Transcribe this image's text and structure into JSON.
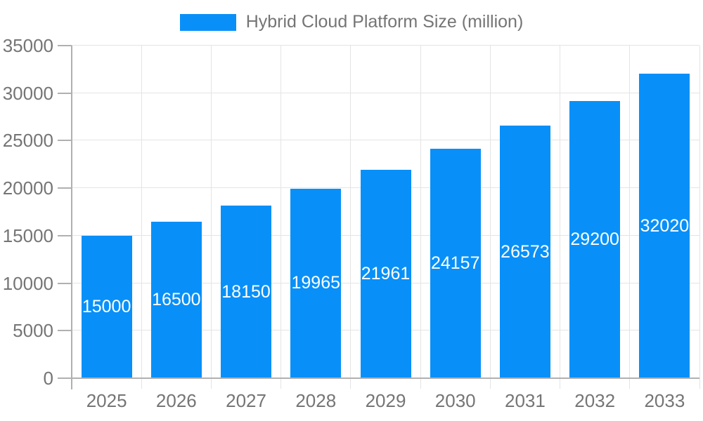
{
  "chart_data": {
    "type": "bar",
    "title": "",
    "categories": [
      "2025",
      "2026",
      "2027",
      "2028",
      "2029",
      "2030",
      "2031",
      "2032",
      "2033"
    ],
    "series": [
      {
        "name": "Hybrid Cloud Platform Size (million)",
        "values": [
          15000,
          16500,
          18150,
          19965,
          21961,
          24157,
          26573,
          29200,
          32020
        ]
      }
    ],
    "xlabel": "",
    "ylabel": "",
    "ylim": [
      0,
      35000
    ],
    "yticks": [
      0,
      5000,
      10000,
      15000,
      20000,
      25000,
      30000,
      35000
    ],
    "grid": true,
    "legend_position": "top",
    "bar_labels_inside": true,
    "colors": {
      "bar": "#0890f8",
      "bar_label": "#ffffff",
      "axis_text": "#757575",
      "gridline": "#e4e4e4",
      "axis_line": "#b0b0b0",
      "background": "#ffffff"
    }
  }
}
